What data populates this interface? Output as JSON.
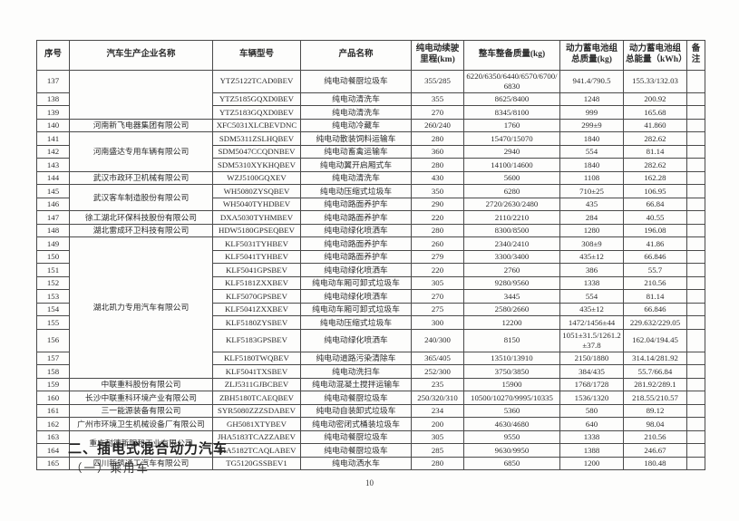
{
  "table": {
    "headers": [
      "序号",
      "汽车生产企业名称",
      "车辆型号",
      "产品名称",
      "纯电动续驶里程(km)",
      "整车整备质量(kg)",
      "动力蓄电池组总质量(kg)",
      "动力蓄电池组总能量（kWh）",
      "备注"
    ],
    "groups": [
      {
        "manufacturer": "",
        "rows": [
          {
            "no": "137",
            "model": "YTZ5122TCAD0BEV",
            "product": "纯电动餐厨垃圾车",
            "range": "355/285",
            "weight": "6220/6350/6440/6570/6700/6830",
            "battery_mass": "941.4/790.5",
            "battery_energy": "155.33/132.03",
            "remark": ""
          },
          {
            "no": "138",
            "model": "YTZ5185GQXD0BEV",
            "product": "纯电动清洗车",
            "range": "355",
            "weight": "8625/8400",
            "battery_mass": "1248",
            "battery_energy": "200.92",
            "remark": ""
          },
          {
            "no": "139",
            "model": "YTZ5183GQXD0BEV",
            "product": "纯电动清洗车",
            "range": "270",
            "weight": "8345/8100",
            "battery_mass": "999",
            "battery_energy": "165.68",
            "remark": ""
          }
        ]
      },
      {
        "manufacturer": "河南新飞电器集团有限公司",
        "rows": [
          {
            "no": "140",
            "model": "XFC5031XLCBEVDNC",
            "product": "纯电动冷藏车",
            "range": "260/240",
            "weight": "1760",
            "battery_mass": "299±9",
            "battery_energy": "41.860",
            "remark": ""
          }
        ]
      },
      {
        "manufacturer": "河南盛达专用车辆有限公司",
        "rows": [
          {
            "no": "141",
            "model": "SDM5311ZSLHQBEV",
            "product": "纯电动散装饲料运输车",
            "range": "280",
            "weight": "15470/15070",
            "battery_mass": "1840",
            "battery_energy": "282.62",
            "remark": ""
          },
          {
            "no": "142",
            "model": "SDM5047CCQDNBEV",
            "product": "纯电动畜禽运输车",
            "range": "360",
            "weight": "2940",
            "battery_mass": "554",
            "battery_energy": "81.14",
            "remark": ""
          },
          {
            "no": "143",
            "model": "SDM5310XYKHQBEV",
            "product": "纯电动翼开启厢式车",
            "range": "280",
            "weight": "14100/14600",
            "battery_mass": "1840",
            "battery_energy": "282.62",
            "remark": ""
          }
        ]
      },
      {
        "manufacturer": "武汉市政环卫机械有限公司",
        "rows": [
          {
            "no": "144",
            "model": "WZJ5100GQXEV",
            "product": "纯电动清洗车",
            "range": "430",
            "weight": "5600",
            "battery_mass": "1108",
            "battery_energy": "162.28",
            "remark": ""
          }
        ]
      },
      {
        "manufacturer": "武汉客车制造股份有限公司",
        "rows": [
          {
            "no": "145",
            "model": "WH5080ZYSQBEV",
            "product": "纯电动压缩式垃圾车",
            "range": "350",
            "weight": "6280",
            "battery_mass": "710±25",
            "battery_energy": "106.95",
            "remark": ""
          },
          {
            "no": "146",
            "model": "WH5040TYHDBEV",
            "product": "纯电动路面养护车",
            "range": "290",
            "weight": "2720/2630/2480",
            "battery_mass": "435",
            "battery_energy": "66.84",
            "remark": ""
          }
        ]
      },
      {
        "manufacturer": "徐工湖北环保科技股份有限公司",
        "rows": [
          {
            "no": "147",
            "model": "DXA5030TYHMBEV",
            "product": "纯电动路面养护车",
            "range": "220",
            "weight": "2110/2210",
            "battery_mass": "284",
            "battery_energy": "40.55",
            "remark": ""
          }
        ]
      },
      {
        "manufacturer": "湖北雷成环卫科技有限公司",
        "rows": [
          {
            "no": "148",
            "model": "HDW5180GPSEQBEV",
            "product": "纯电动绿化喷洒车",
            "range": "280",
            "weight": "8300/8500",
            "battery_mass": "1280",
            "battery_energy": "196.08",
            "remark": ""
          }
        ]
      },
      {
        "manufacturer": "湖北凯力专用汽车有限公司",
        "rows": [
          {
            "no": "149",
            "model": "KLF5031TYHBEV",
            "product": "纯电动路面养护车",
            "range": "260",
            "weight": "2340/2410",
            "battery_mass": "308±9",
            "battery_energy": "41.86",
            "remark": ""
          },
          {
            "no": "150",
            "model": "KLF5041TYHBEV",
            "product": "纯电动路面养护车",
            "range": "279",
            "weight": "3300/3400",
            "battery_mass": "435±12",
            "battery_energy": "66.846",
            "remark": ""
          },
          {
            "no": "151",
            "model": "KLF5041GPSBEV",
            "product": "纯电动绿化喷洒车",
            "range": "220",
            "weight": "2760",
            "battery_mass": "386",
            "battery_energy": "55.7",
            "remark": ""
          },
          {
            "no": "152",
            "model": "KLF5181ZXXBEV",
            "product": "纯电动车厢可卸式垃圾车",
            "range": "305",
            "weight": "9280/9560",
            "battery_mass": "1338",
            "battery_energy": "210.56",
            "remark": ""
          },
          {
            "no": "153",
            "model": "KLF5070GPSBEV",
            "product": "纯电动绿化喷洒车",
            "range": "270",
            "weight": "3445",
            "battery_mass": "554",
            "battery_energy": "81.14",
            "remark": ""
          },
          {
            "no": "154",
            "model": "KLF5041ZXXBEV",
            "product": "纯电动车厢可卸式垃圾车",
            "range": "275",
            "weight": "2580/2660",
            "battery_mass": "435±12",
            "battery_energy": "66.846",
            "remark": ""
          },
          {
            "no": "155",
            "model": "KLF5180ZYSBEV",
            "product": "纯电动压缩式垃圾车",
            "range": "300",
            "weight": "12200",
            "battery_mass": "1472/1456±44",
            "battery_energy": "229.632/229.05",
            "remark": ""
          },
          {
            "no": "156",
            "model": "KLF5183GPSBEV",
            "product": "纯电动绿化喷洒车",
            "range": "240/300",
            "weight": "8150",
            "battery_mass": "1051±31.5/1261.2±37.8",
            "battery_energy": "162.04/194.45",
            "remark": ""
          },
          {
            "no": "157",
            "model": "KLF5180TWQBEV",
            "product": "纯电动道路污染清除车",
            "range": "365/405",
            "weight": "13510/13910",
            "battery_mass": "2150/1880",
            "battery_energy": "314.14/281.92",
            "remark": ""
          },
          {
            "no": "158",
            "model": "KLF5041TXSBEV",
            "product": "纯电动洗扫车",
            "range": "252/300",
            "weight": "3750/3850",
            "battery_mass": "384/435",
            "battery_energy": "55.7/66.84",
            "remark": ""
          }
        ]
      },
      {
        "manufacturer": "中联重科股份有限公司",
        "rows": [
          {
            "no": "159",
            "model": "ZLJ5311GJBCBEV",
            "product": "纯电动混凝土搅拌运输车",
            "range": "235",
            "weight": "15900",
            "battery_mass": "1768/1728",
            "battery_energy": "281.92/289.1",
            "remark": ""
          }
        ]
      },
      {
        "manufacturer": "长沙中联重科环境产业有限公司",
        "rows": [
          {
            "no": "160",
            "model": "ZBH5180TCAEQBEV",
            "product": "纯电动餐厨垃圾车",
            "range": "250/320/310",
            "weight": "10500/10270/9995/10335",
            "battery_mass": "1536/1320",
            "battery_energy": "218.55/210.57",
            "remark": ""
          }
        ]
      },
      {
        "manufacturer": "三一能源装备有限公司",
        "rows": [
          {
            "no": "161",
            "model": "SYR5080ZZZSDABEV",
            "product": "纯电动自装卸式垃圾车",
            "range": "234",
            "weight": "5360",
            "battery_mass": "580",
            "battery_energy": "89.12",
            "remark": ""
          }
        ]
      },
      {
        "manufacturer": "广州市环境卫生机械设备厂有限公司",
        "rows": [
          {
            "no": "162",
            "model": "GH5081XTYBEV",
            "product": "纯电动密闭式桶装垃圾车",
            "range": "200",
            "weight": "4630/4680",
            "battery_mass": "640",
            "battery_energy": "98.04",
            "remark": ""
          }
        ]
      },
      {
        "manufacturer": "重庆耐德新明和工业有限公司",
        "rows": [
          {
            "no": "163",
            "model": "JHA5183TCAZZABEV",
            "product": "纯电动餐厨垃圾车",
            "range": "305",
            "weight": "9550",
            "battery_mass": "1338",
            "battery_energy": "210.56",
            "remark": ""
          },
          {
            "no": "164",
            "model": "JHA5182TCAQLABEV",
            "product": "纯电动餐厨垃圾车",
            "range": "285",
            "weight": "9630/9950",
            "battery_mass": "1388",
            "battery_energy": "246.67",
            "remark": ""
          }
        ]
      },
      {
        "manufacturer": "四川新筑通工汽车有限公司",
        "rows": [
          {
            "no": "165",
            "model": "TG5120GSSBEV1",
            "product": "纯电动洒水车",
            "range": "280",
            "weight": "6850",
            "battery_mass": "1200",
            "battery_energy": "180.48",
            "remark": ""
          }
        ]
      }
    ]
  },
  "footer": {
    "section_title": "二、插电式混合动力汽车",
    "subsection_title": "（一）乘用车",
    "page_number": "10"
  }
}
